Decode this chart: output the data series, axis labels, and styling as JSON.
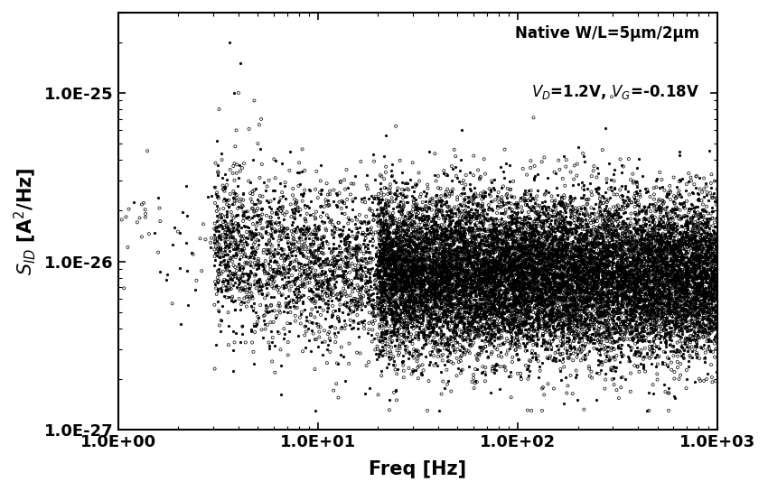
{
  "title_line1": "Native W/L=5μm/2μm",
  "title_line2": "$V_D$=1.2V, $V_G$=-0.18V",
  "xlabel": "Freq [Hz]",
  "ylabel": "$S_{ID}$ [A$^2$/Hz]",
  "xlim": [
    1.0,
    1000.0
  ],
  "ylim_low": 1e-27,
  "ylim_high": 3e-25,
  "background_color": "#ffffff",
  "seed": 42,
  "base_noise_level": 8e-27,
  "one_over_f_knee": 8.0,
  "scatter_sigma": 0.55,
  "n_main": 15000,
  "floor_value": 1.3e-27
}
